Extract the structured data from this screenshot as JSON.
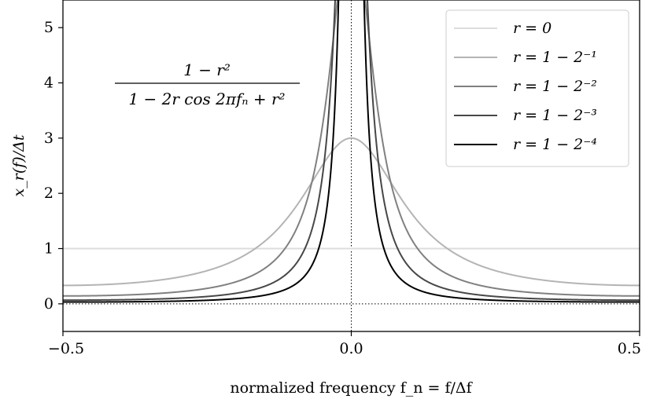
{
  "chart_data": {
    "type": "line",
    "title": "",
    "xlabel": "normalized frequency f_n = f/Δf",
    "ylabel": "x_r(f)/Δt",
    "xlim": [
      -0.5,
      0.5
    ],
    "ylim": [
      -0.5,
      5.5
    ],
    "x_ticks": [
      -0.5,
      0.0,
      0.5
    ],
    "x_tick_labels": [
      "−0.5",
      "0.0",
      "0.5"
    ],
    "y_ticks": [
      0,
      1,
      2,
      3,
      4,
      5
    ],
    "y_tick_labels": [
      "0",
      "1",
      "2",
      "3",
      "4",
      "5"
    ],
    "grid": false,
    "legend_position": "top-right",
    "reference_lines": [
      {
        "orientation": "horizontal",
        "value": 0,
        "style": "dotted"
      },
      {
        "orientation": "vertical",
        "value": 0,
        "style": "dotted"
      }
    ],
    "formula": {
      "numerator": "1 − r²",
      "denominator": "1 − 2r cos 2πfₙ + r²"
    },
    "function": "(1 - r^2) / (1 - 2 r cos(2 pi f_n) + r^2)",
    "series": [
      {
        "name": "r = 0",
        "r": 0,
        "color": "#dcdcdc"
      },
      {
        "name": "r = 1 − 2⁻¹",
        "r": 0.5,
        "color": "#b4b4b4"
      },
      {
        "name": "r = 1 − 2⁻²",
        "r": 0.75,
        "color": "#808080"
      },
      {
        "name": "r = 1 − 2⁻³",
        "r": 0.875,
        "color": "#474747"
      },
      {
        "name": "r = 1 − 2⁻⁴",
        "r": 0.9375,
        "color": "#000000"
      }
    ]
  }
}
